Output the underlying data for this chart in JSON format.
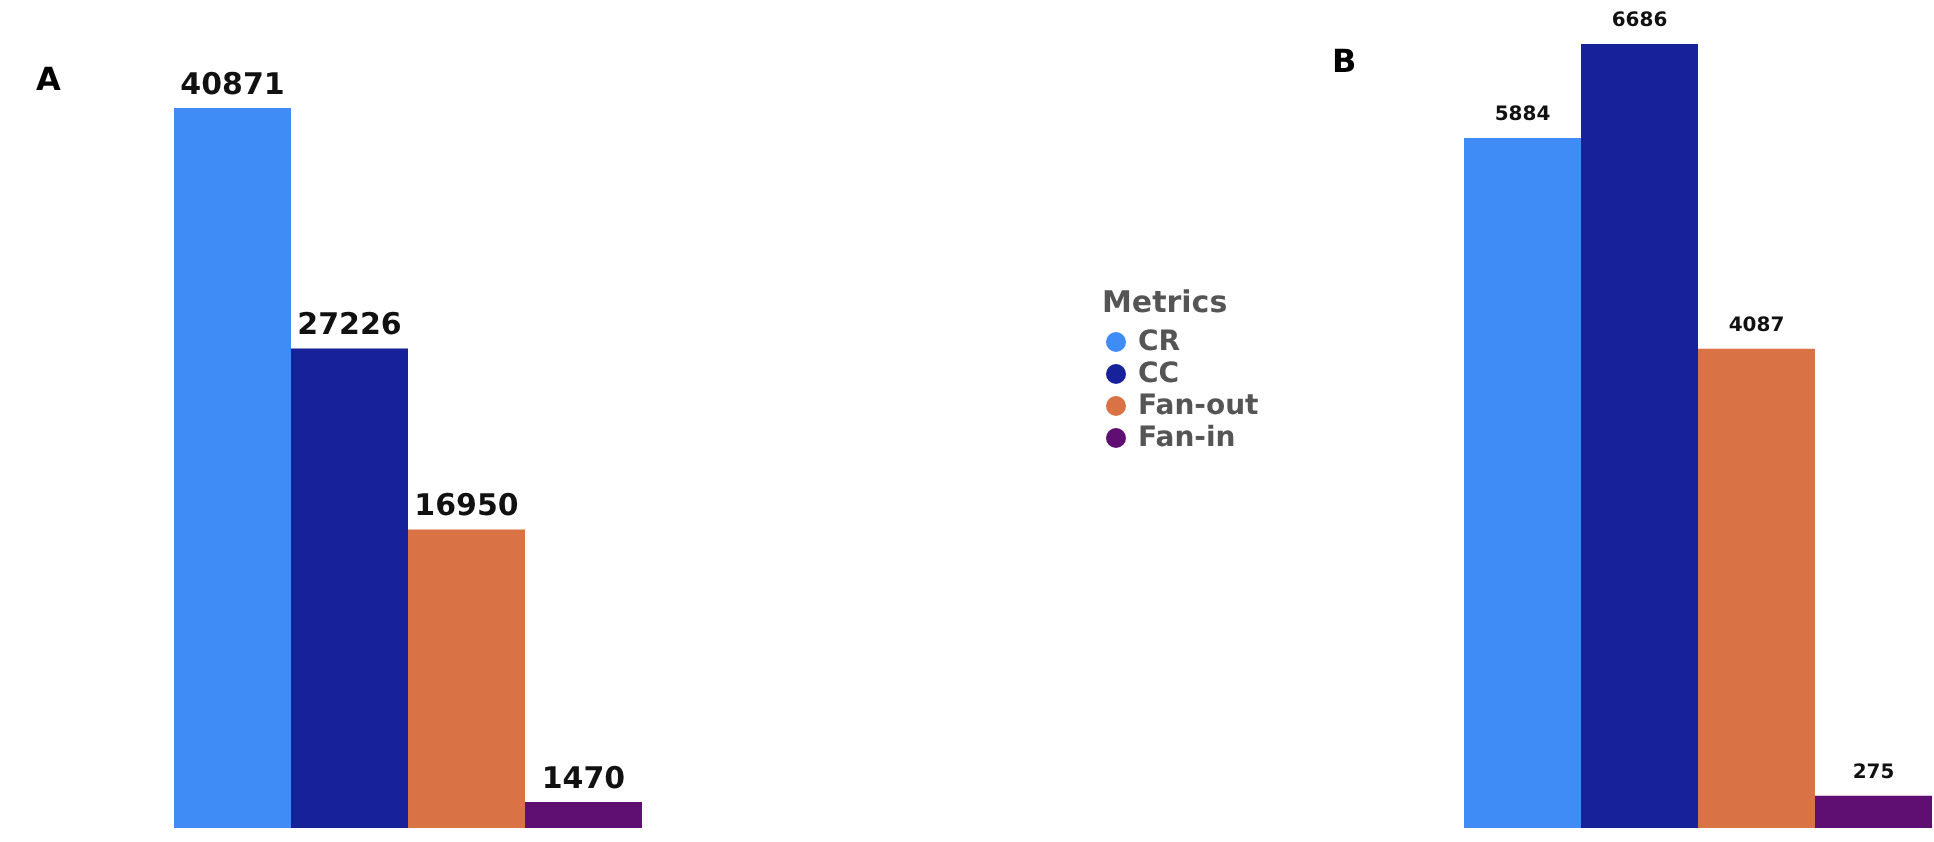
{
  "chart_data": [
    {
      "type": "bar",
      "title": "A",
      "categories": [
        null
      ],
      "data_labels": true,
      "legend": "right",
      "legend_title": "Metrics",
      "series": [
        {
          "name": "CR",
          "color": "#3f8cf7",
          "values": [
            40871
          ]
        },
        {
          "name": "CC",
          "color": "#16219a",
          "values": [
            27226
          ]
        },
        {
          "name": "Fan-out",
          "color": "#d97346",
          "values": [
            16950
          ]
        },
        {
          "name": "Fan-in",
          "color": "#5f0f72",
          "values": [
            1470
          ]
        }
      ]
    },
    {
      "type": "bar",
      "title": "B",
      "categories": [
        null
      ],
      "data_labels": true,
      "legend": false,
      "series": [
        {
          "color": "#3f8cf7",
          "values": [
            5884
          ]
        },
        {
          "color": "#16219a",
          "values": [
            6686
          ]
        },
        {
          "color": "#d97346",
          "values": [
            4087
          ]
        },
        {
          "color": "#5f0f72",
          "values": [
            275
          ]
        }
      ]
    }
  ]
}
